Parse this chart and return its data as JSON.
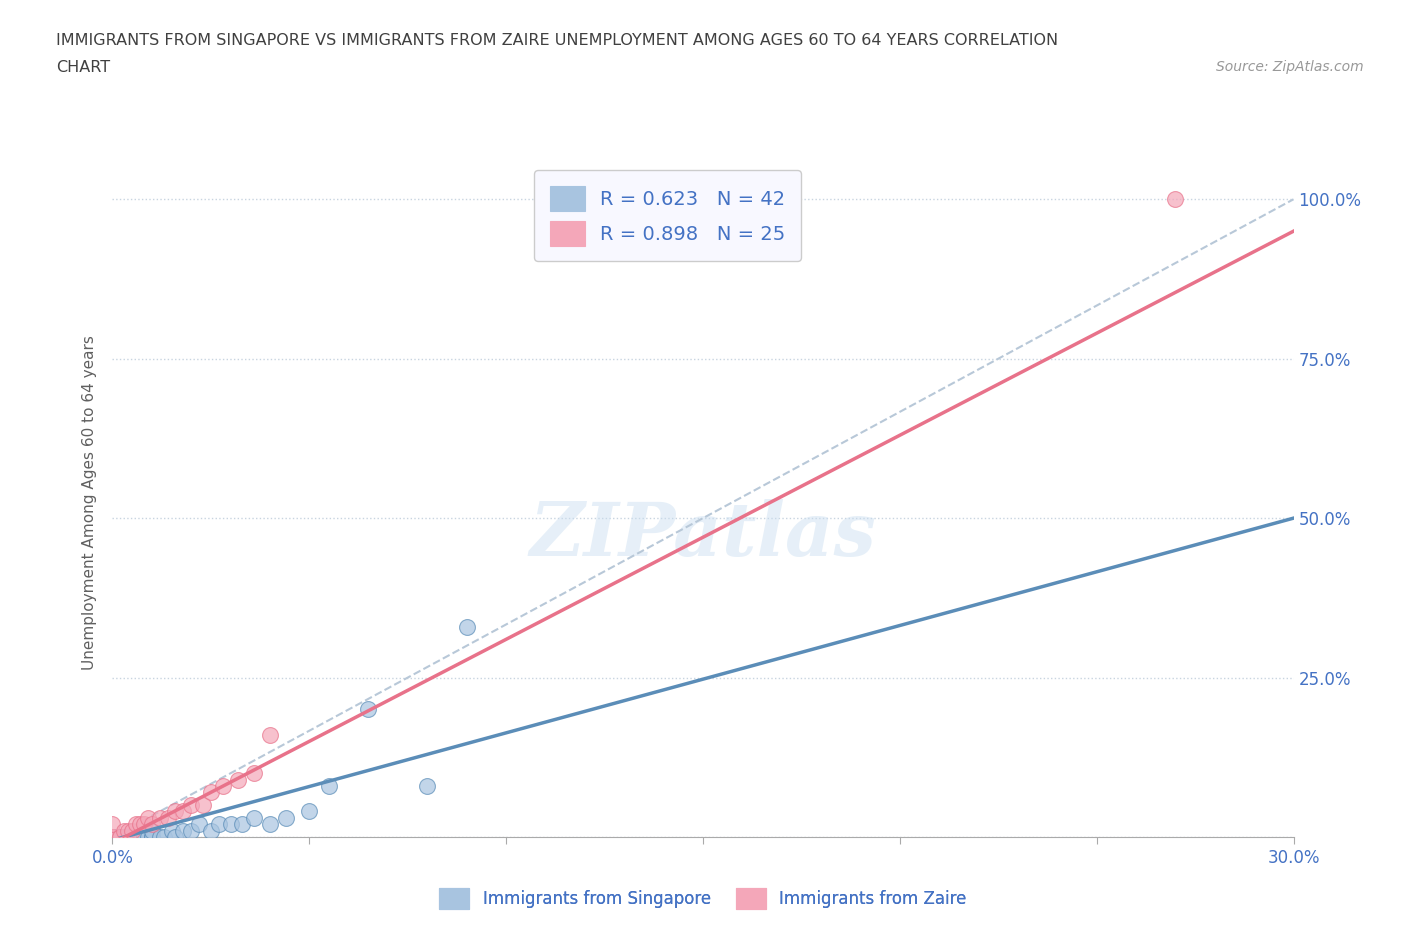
{
  "title_line1": "IMMIGRANTS FROM SINGAPORE VS IMMIGRANTS FROM ZAIRE UNEMPLOYMENT AMONG AGES 60 TO 64 YEARS CORRELATION",
  "title_line2": "CHART",
  "source_text": "Source: ZipAtlas.com",
  "ylabel": "Unemployment Among Ages 60 to 64 years",
  "xlim": [
    0.0,
    0.3
  ],
  "ylim": [
    0.0,
    1.05
  ],
  "xticks": [
    0.0,
    0.05,
    0.1,
    0.15,
    0.2,
    0.25,
    0.3
  ],
  "ytick_positions": [
    0.0,
    0.25,
    0.5,
    0.75,
    1.0
  ],
  "yticklabels_right": [
    "",
    "25.0%",
    "50.0%",
    "75.0%",
    "100.0%"
  ],
  "singapore_R": 0.623,
  "singapore_N": 42,
  "zaire_R": 0.898,
  "zaire_N": 25,
  "singapore_color": "#a8c4e0",
  "zaire_color": "#f4a7b9",
  "singapore_line_color": "#5b8db8",
  "zaire_line_color": "#e8728a",
  "ref_line_color": "#b8c8d8",
  "watermark": "ZIPatlas",
  "singapore_x": [
    0.0,
    0.0,
    0.0,
    0.0,
    0.0,
    0.0,
    0.0,
    0.0,
    0.0,
    0.0,
    0.002,
    0.002,
    0.003,
    0.004,
    0.005,
    0.005,
    0.006,
    0.007,
    0.008,
    0.009,
    0.01,
    0.01,
    0.01,
    0.012,
    0.013,
    0.015,
    0.016,
    0.018,
    0.02,
    0.022,
    0.025,
    0.027,
    0.03,
    0.033,
    0.036,
    0.04,
    0.044,
    0.05,
    0.055,
    0.065,
    0.08,
    0.09
  ],
  "singapore_y": [
    0.0,
    0.0,
    0.0,
    0.0,
    0.0,
    0.0,
    0.0,
    0.0,
    0.0,
    0.0,
    0.0,
    0.0,
    0.0,
    0.0,
    0.0,
    0.0,
    0.0,
    0.0,
    0.0,
    0.0,
    0.0,
    0.0,
    0.01,
    0.0,
    0.0,
    0.01,
    0.0,
    0.01,
    0.01,
    0.02,
    0.01,
    0.02,
    0.02,
    0.02,
    0.03,
    0.02,
    0.03,
    0.04,
    0.08,
    0.2,
    0.08,
    0.33
  ],
  "zaire_x": [
    0.0,
    0.0,
    0.0,
    0.0,
    0.002,
    0.003,
    0.004,
    0.005,
    0.006,
    0.007,
    0.008,
    0.009,
    0.01,
    0.012,
    0.014,
    0.016,
    0.018,
    0.02,
    0.023,
    0.025,
    0.028,
    0.032,
    0.036,
    0.04,
    0.27
  ],
  "zaire_y": [
    0.0,
    0.0,
    0.0,
    0.02,
    0.0,
    0.01,
    0.01,
    0.01,
    0.02,
    0.02,
    0.02,
    0.03,
    0.02,
    0.03,
    0.03,
    0.04,
    0.04,
    0.05,
    0.05,
    0.07,
    0.08,
    0.09,
    0.1,
    0.16,
    1.0
  ],
  "sg_line_x0": 0.0,
  "sg_line_y0": -0.005,
  "sg_line_x1": 0.3,
  "sg_line_y1": 0.5,
  "zr_line_x0": 0.0,
  "zr_line_y0": -0.01,
  "zr_line_x1": 0.3,
  "zr_line_y1": 0.95,
  "legend_box_color": "#f8f8ff",
  "legend_text_color": "#4472c4",
  "title_color": "#404040",
  "axis_label_color": "#606060",
  "tick_label_color": "#4472c4"
}
